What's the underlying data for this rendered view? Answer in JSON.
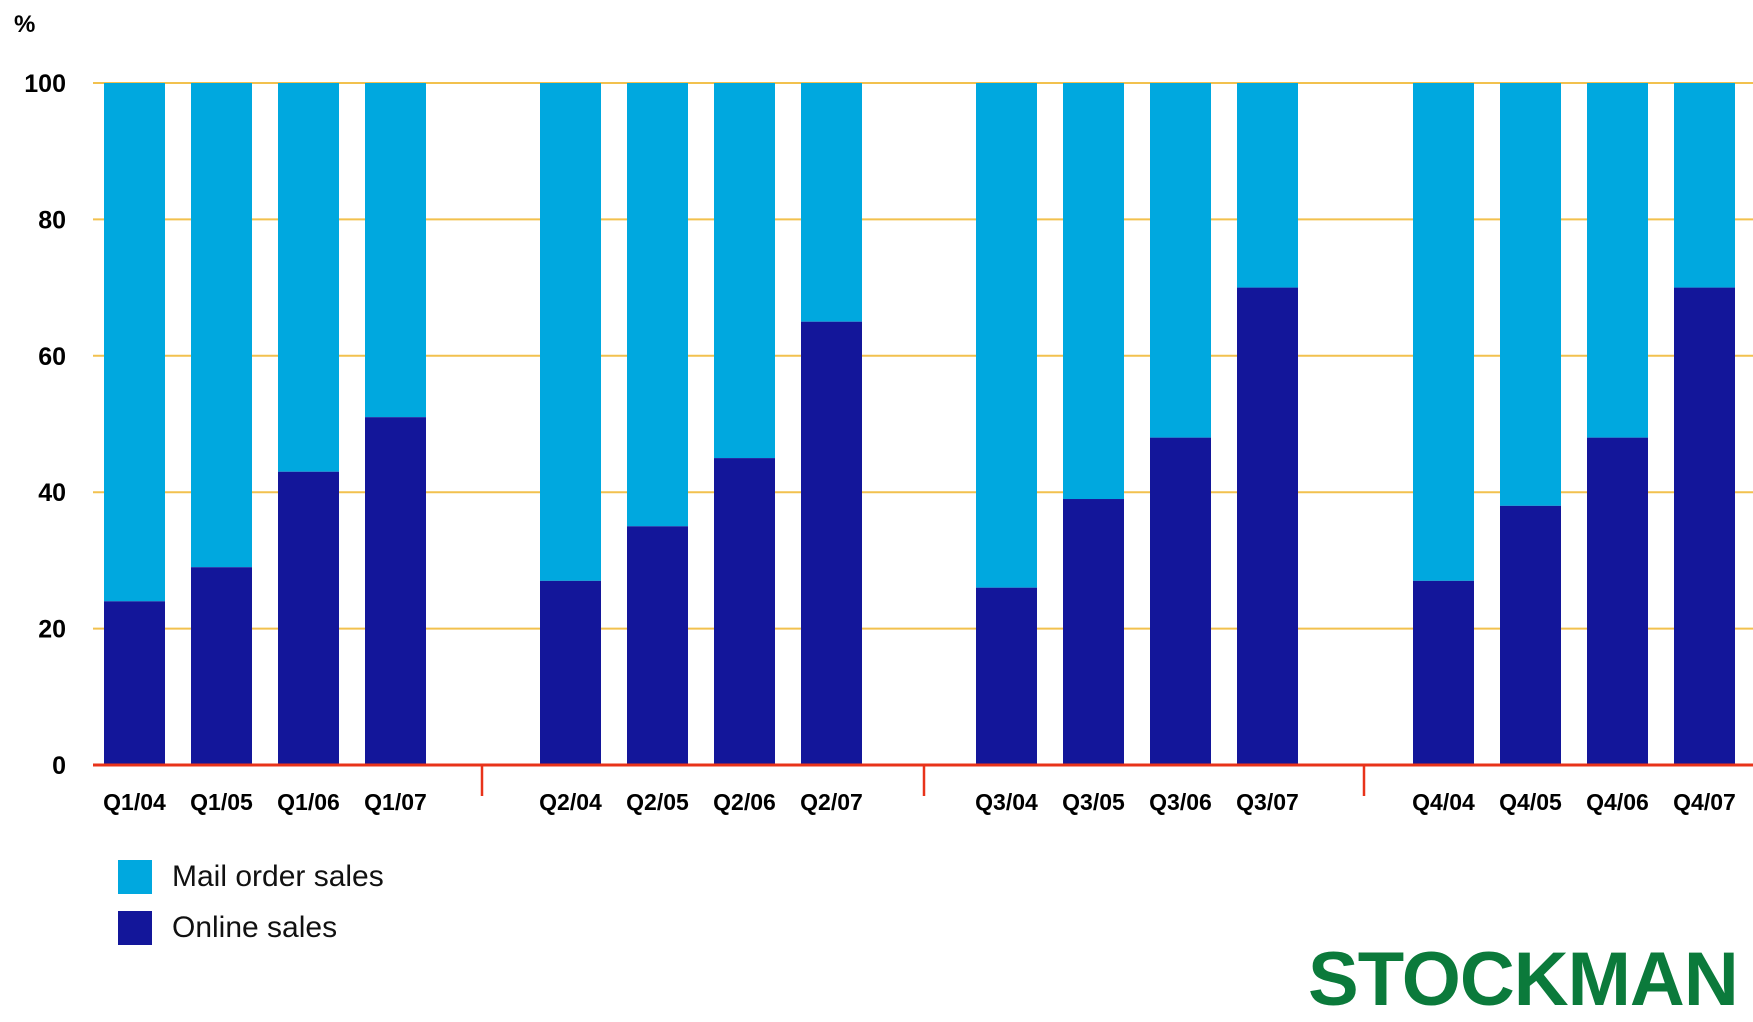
{
  "colors": {
    "mail": "#00a8df",
    "online": "#13169a",
    "grid": "#f2c14e",
    "axis": "#e8331a",
    "logo": "#0b7a3b"
  },
  "legend": {
    "items": [
      {
        "label": "Mail order sales",
        "color_key": "mail"
      },
      {
        "label": "Online sales",
        "color_key": "online"
      }
    ]
  },
  "logo": {
    "text": "STOCKMAN"
  },
  "chart_data": {
    "type": "bar",
    "stacked": true,
    "unit_label": "%",
    "title": "",
    "xlabel": "",
    "ylabel": "",
    "ylim": [
      0,
      100
    ],
    "yticks": [
      0,
      20,
      40,
      60,
      80,
      100
    ],
    "grid": true,
    "legend_placement": "bottom-left",
    "groups": [
      {
        "categories": [
          "Q1/04",
          "Q1/05",
          "Q1/06",
          "Q1/07"
        ]
      },
      {
        "categories": [
          "Q2/04",
          "Q2/05",
          "Q2/06",
          "Q2/07"
        ]
      },
      {
        "categories": [
          "Q3/04",
          "Q3/05",
          "Q3/06",
          "Q3/07"
        ]
      },
      {
        "categories": [
          "Q4/04",
          "Q4/05",
          "Q4/06",
          "Q4/07"
        ]
      }
    ],
    "categories": [
      "Q1/04",
      "Q1/05",
      "Q1/06",
      "Q1/07",
      "Q2/04",
      "Q2/05",
      "Q2/06",
      "Q2/07",
      "Q3/04",
      "Q3/05",
      "Q3/06",
      "Q3/07",
      "Q4/04",
      "Q4/05",
      "Q4/06",
      "Q4/07"
    ],
    "series": [
      {
        "name": "Online sales",
        "color_key": "online",
        "values": [
          24,
          29,
          43,
          51,
          27,
          35,
          45,
          65,
          26,
          39,
          48,
          70,
          27,
          38,
          48,
          70
        ]
      },
      {
        "name": "Mail order sales",
        "color_key": "mail",
        "values": [
          76,
          71,
          57,
          49,
          73,
          65,
          55,
          35,
          74,
          61,
          52,
          30,
          73,
          62,
          52,
          30
        ]
      }
    ]
  }
}
